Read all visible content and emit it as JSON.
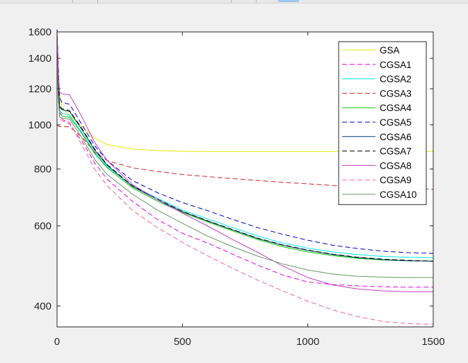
{
  "chart_data": {
    "type": "line",
    "title": "",
    "xlabel": "",
    "ylabel": "",
    "xlim": [
      0,
      1500
    ],
    "ylim": [
      360,
      1600
    ],
    "yscale": "log",
    "grid": false,
    "legend_position": "top-right",
    "xticks": [
      0,
      500,
      1000,
      1500
    ],
    "xtick_labels": [
      "0",
      "500",
      "1000",
      "1500"
    ],
    "yticks": [
      400,
      600,
      800,
      1000,
      1200,
      1400,
      1600
    ],
    "ytick_labels": [
      "400",
      "600",
      "800",
      "1000",
      "1200",
      "1400",
      "1600"
    ],
    "series": [
      {
        "name": "GSA",
        "color": "#e6e600",
        "dash": "solid",
        "x": [
          0,
          5,
          10,
          20,
          50,
          100,
          150,
          200,
          300,
          400,
          500,
          600,
          800,
          1000,
          1200,
          1500
        ],
        "y": [
          1600,
          1330,
          1170,
          1090,
          1050,
          990,
          935,
          905,
          885,
          878,
          875,
          874,
          874,
          874,
          874,
          874
        ]
      },
      {
        "name": "CGSA1",
        "color": "#e600e6",
        "dash": "dashed",
        "x": [
          0,
          5,
          10,
          20,
          50,
          100,
          150,
          200,
          300,
          400,
          500,
          600,
          700,
          800,
          900,
          1000,
          1100,
          1200,
          1300,
          1400,
          1500
        ],
        "y": [
          1580,
          1300,
          1100,
          1030,
          1005,
          920,
          825,
          760,
          680,
          620,
          578,
          550,
          520,
          492,
          468,
          452,
          446,
          443,
          441,
          440,
          440
        ]
      },
      {
        "name": "CGSA2",
        "color": "#00e6e6",
        "dash": "solid",
        "x": [
          0,
          5,
          10,
          20,
          50,
          100,
          150,
          200,
          300,
          400,
          500,
          600,
          700,
          800,
          900,
          1000,
          1100,
          1200,
          1300,
          1400,
          1500
        ],
        "y": [
          1560,
          1250,
          1080,
          1060,
          1050,
          960,
          870,
          810,
          735,
          690,
          650,
          622,
          595,
          570,
          550,
          536,
          526,
          519,
          514,
          512,
          511
        ]
      },
      {
        "name": "CGSA3",
        "color": "#d42020",
        "dash": "dashed",
        "x": [
          0,
          5,
          10,
          20,
          50,
          100,
          150,
          200,
          300,
          400,
          500,
          600,
          700,
          800,
          900,
          1000,
          1100,
          1200,
          1300,
          1400,
          1500
        ],
        "y": [
          1000,
          995,
          992,
          992,
          990,
          940,
          870,
          835,
          805,
          790,
          778,
          770,
          762,
          755,
          748,
          742,
          736,
          732,
          728,
          725,
          722
        ]
      },
      {
        "name": "CGSA4",
        "color": "#00c800",
        "dash": "solid",
        "x": [
          0,
          5,
          10,
          20,
          50,
          100,
          150,
          200,
          300,
          400,
          500,
          600,
          700,
          800,
          900,
          1000,
          1100,
          1200,
          1300,
          1400,
          1500
        ],
        "y": [
          1500,
          1200,
          1060,
          1045,
          1040,
          955,
          865,
          805,
          728,
          680,
          642,
          612,
          585,
          560,
          540,
          526,
          516,
          509,
          505,
          503,
          502
        ]
      },
      {
        "name": "CGSA5",
        "color": "#0000c8",
        "dash": "dashed",
        "x": [
          0,
          5,
          10,
          20,
          50,
          100,
          150,
          200,
          300,
          400,
          500,
          600,
          700,
          800,
          900,
          1000,
          1100,
          1200,
          1300,
          1400,
          1500
        ],
        "y": [
          1620,
          1350,
          1150,
          1120,
          1110,
          1000,
          900,
          835,
          755,
          710,
          675,
          648,
          620,
          595,
          575,
          558,
          544,
          535,
          528,
          524,
          522
        ]
      },
      {
        "name": "CGSA6",
        "color": "#003c78",
        "dash": "solid",
        "x": [
          0,
          5,
          10,
          20,
          50,
          100,
          150,
          200,
          300,
          400,
          500,
          600,
          700,
          800,
          900,
          1000,
          1100,
          1200,
          1300,
          1400,
          1500
        ],
        "y": [
          1540,
          1240,
          1090,
          1080,
          1070,
          975,
          880,
          815,
          733,
          685,
          645,
          615,
          588,
          563,
          544,
          530,
          519,
          511,
          506,
          503,
          502
        ]
      },
      {
        "name": "CGSA7",
        "color": "#000000",
        "dash": "dashed",
        "x": [
          0,
          5,
          10,
          20,
          50,
          100,
          150,
          200,
          300,
          400,
          500,
          600,
          700,
          800,
          900,
          1000,
          1100,
          1200,
          1300,
          1400,
          1500
        ],
        "y": [
          1550,
          1250,
          1100,
          1085,
          1075,
          980,
          885,
          818,
          735,
          687,
          646,
          616,
          589,
          564,
          545,
          531,
          520,
          512,
          507,
          504,
          502
        ]
      },
      {
        "name": "CGSA8",
        "color": "#c83cc8",
        "dash": "solid",
        "x": [
          0,
          5,
          10,
          20,
          50,
          100,
          150,
          200,
          300,
          400,
          500,
          600,
          700,
          800,
          900,
          1000,
          1100,
          1200,
          1300,
          1400,
          1500
        ],
        "y": [
          1600,
          1280,
          1180,
          1170,
          1165,
          1040,
          915,
          835,
          740,
          685,
          640,
          600,
          560,
          525,
          490,
          462,
          445,
          436,
          432,
          430,
          430
        ]
      },
      {
        "name": "CGSA9",
        "color": "#f06496",
        "dash": "dashed",
        "x": [
          0,
          5,
          10,
          20,
          50,
          100,
          150,
          200,
          300,
          400,
          500,
          600,
          700,
          800,
          900,
          1000,
          1100,
          1200,
          1300,
          1400,
          1500
        ],
        "y": [
          1450,
          1150,
          1030,
          1020,
          1015,
          900,
          800,
          735,
          650,
          595,
          552,
          516,
          484,
          456,
          432,
          410,
          392,
          379,
          370,
          366,
          365
        ]
      },
      {
        "name": "CGSA10",
        "color": "#649664",
        "dash": "solid",
        "x": [
          0,
          5,
          10,
          20,
          50,
          100,
          150,
          200,
          300,
          400,
          500,
          600,
          700,
          800,
          900,
          1000,
          1100,
          1200,
          1300,
          1400,
          1500
        ],
        "y": [
          1400,
          1150,
          1040,
          1035,
          1030,
          935,
          840,
          778,
          705,
          650,
          608,
          570,
          540,
          515,
          495,
          480,
          470,
          465,
          463,
          462,
          462
        ]
      }
    ]
  }
}
